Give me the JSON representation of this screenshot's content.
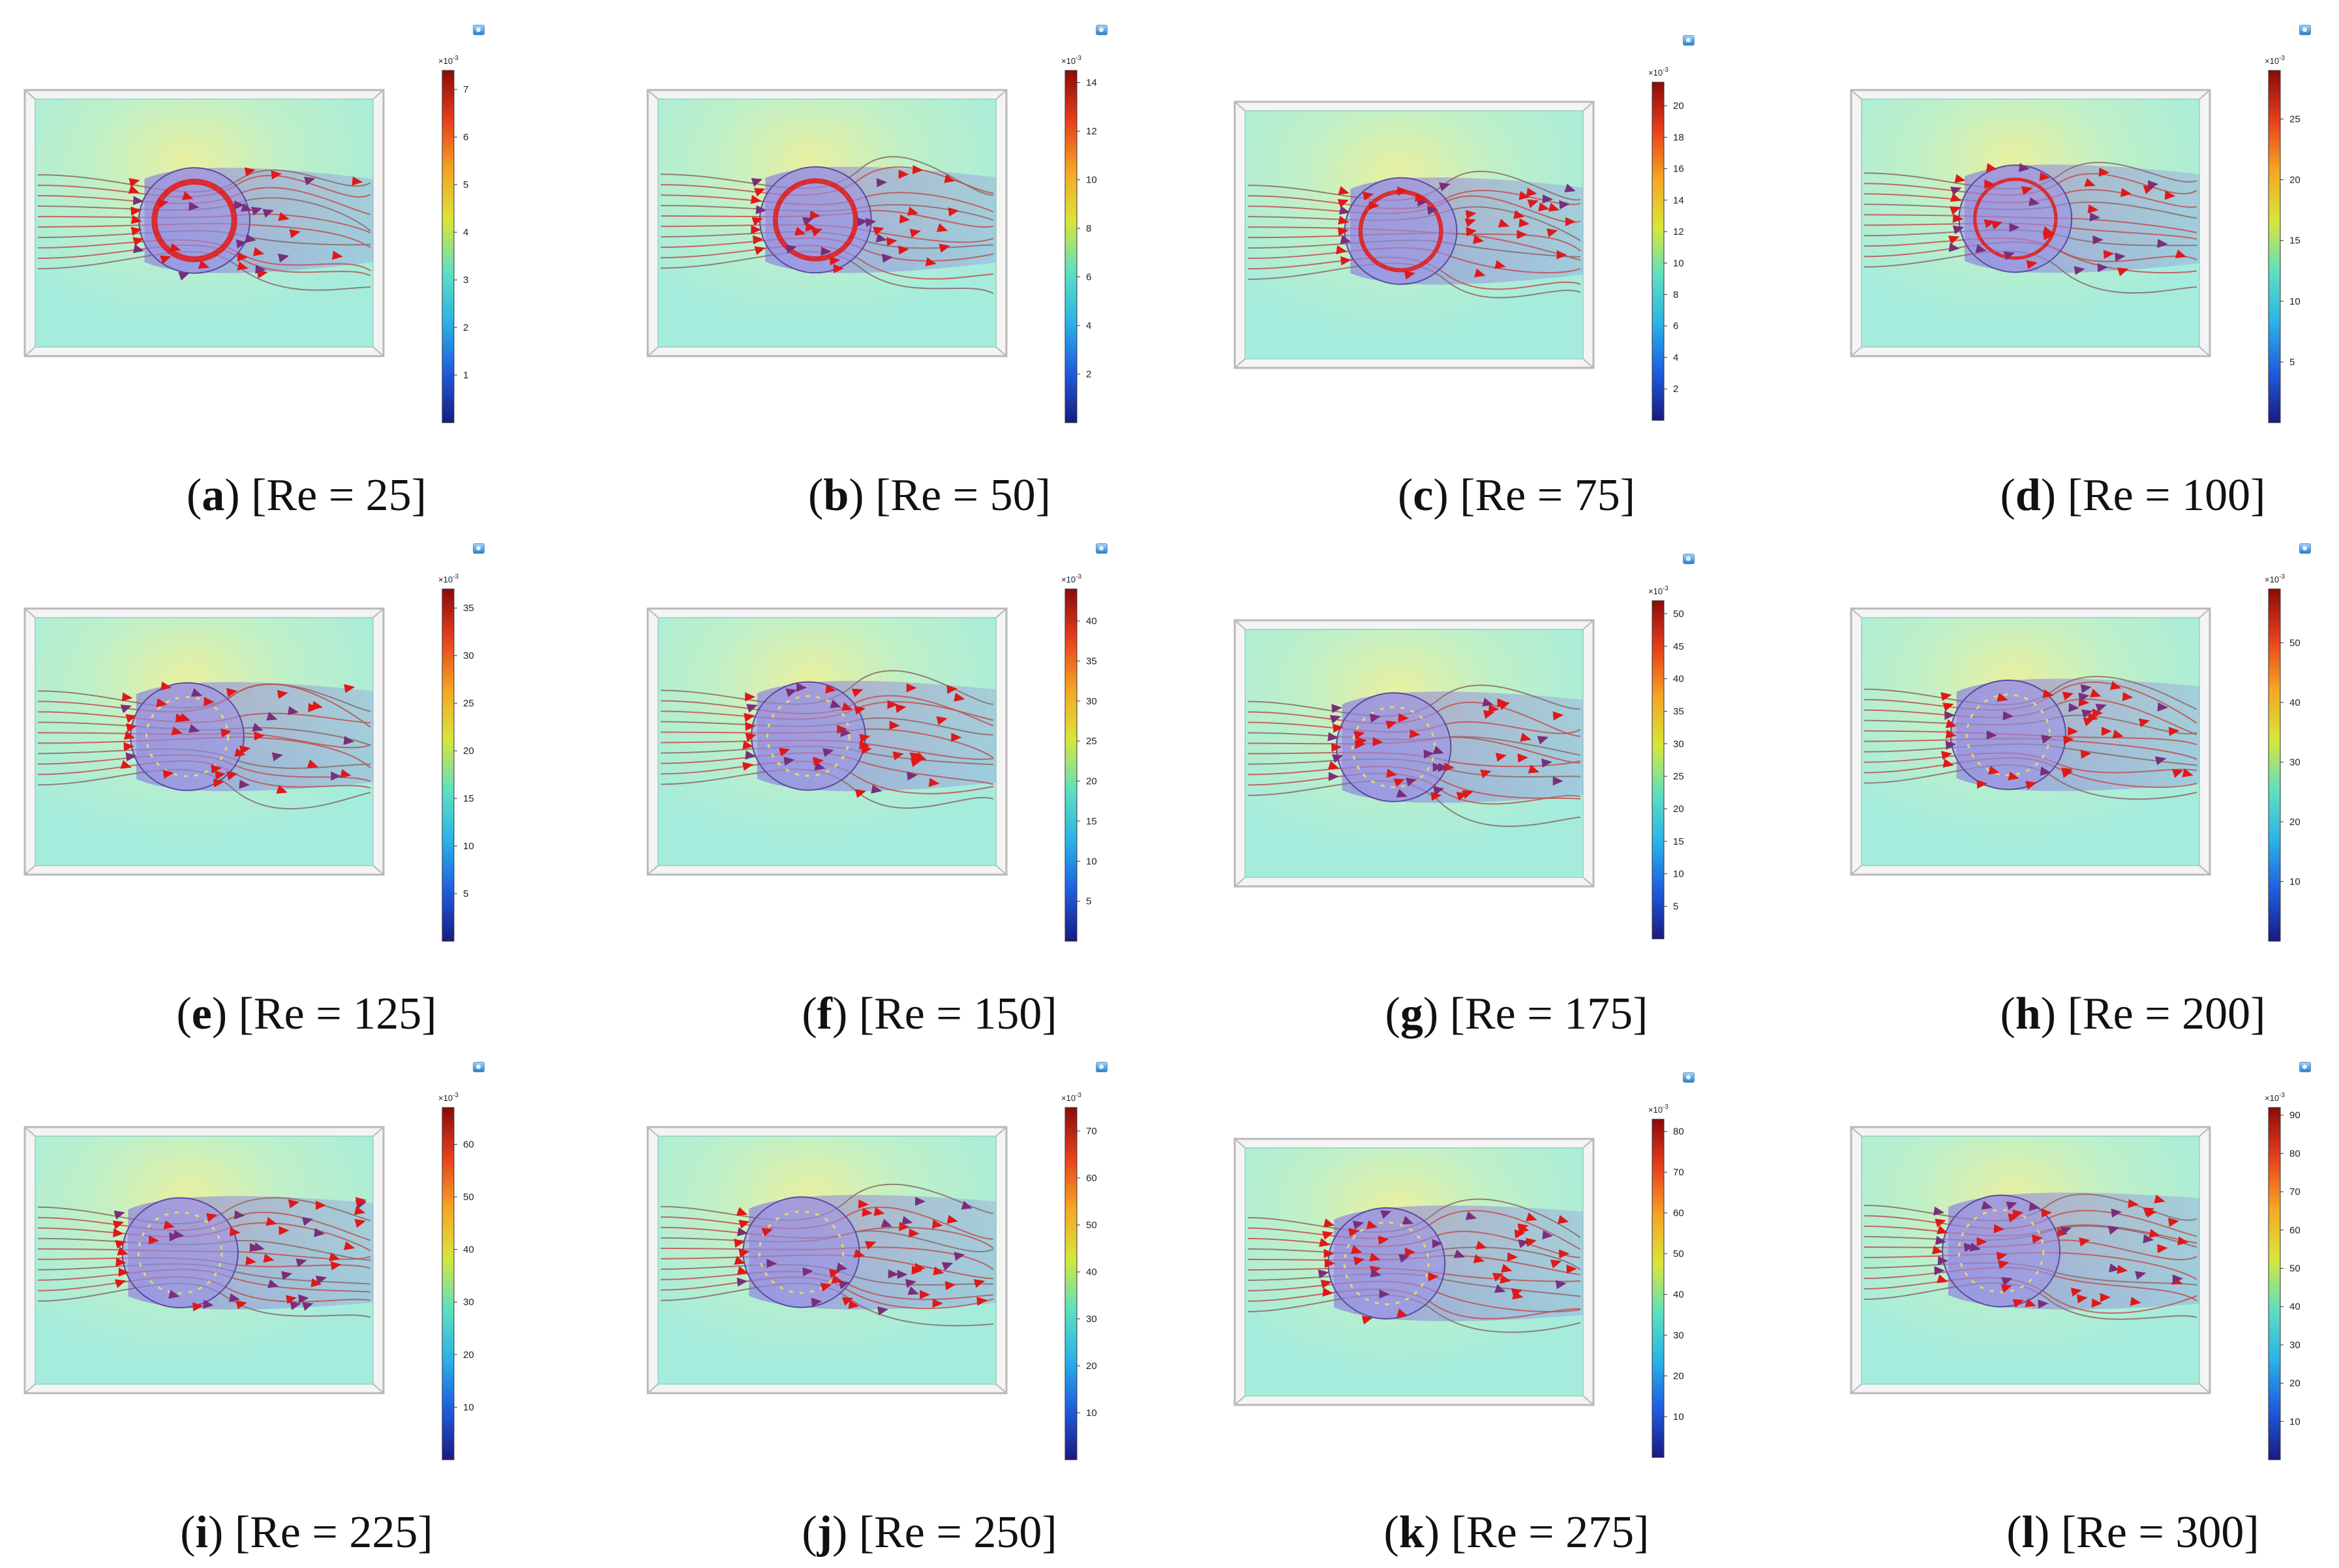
{
  "figure_type": "streamline flow simulation grid",
  "colorbar": {
    "multiplier_base": "×10",
    "multiplier_exp": "-3",
    "colors": [
      "#1a1a80",
      "#1f5ce0",
      "#2ab3e6",
      "#5ee0c0",
      "#d8e63a",
      "#f5a623",
      "#e8401c",
      "#8b0a0a"
    ]
  },
  "colors": {
    "field_background": "#a6ecdc",
    "wake": "#8a7fe0",
    "streamline": "#c05050",
    "arrow": "#e01818",
    "arrow_dark": "#7a2e7a",
    "frame": "#b9b9b9"
  },
  "panels": [
    {
      "letter": "a",
      "re_label": "[Re = 25]",
      "re": 25,
      "cbar_max": 7.4,
      "ticks": [
        "1",
        "2",
        "3",
        "4",
        "5",
        "6",
        "7"
      ]
    },
    {
      "letter": "b",
      "re_label": "[Re = 50]",
      "re": 50,
      "cbar_max": 14.5,
      "ticks": [
        "2",
        "4",
        "6",
        "8",
        "10",
        "12",
        "14"
      ]
    },
    {
      "letter": "c",
      "re_label": "[Re = 75]",
      "re": 75,
      "cbar_max": 21.5,
      "ticks": [
        "2",
        "4",
        "6",
        "8",
        "10",
        "12",
        "14",
        "16",
        "18",
        "20"
      ]
    },
    {
      "letter": "d",
      "re_label": "[Re = 100]",
      "re": 100,
      "cbar_max": 29,
      "ticks": [
        "5",
        "10",
        "15",
        "20",
        "25"
      ]
    },
    {
      "letter": "e",
      "re_label": "[Re = 125]",
      "re": 125,
      "cbar_max": 37,
      "ticks": [
        "5",
        "10",
        "15",
        "20",
        "25",
        "30",
        "35"
      ]
    },
    {
      "letter": "f",
      "re_label": "[Re = 150]",
      "re": 150,
      "cbar_max": 44,
      "ticks": [
        "5",
        "10",
        "15",
        "20",
        "25",
        "30",
        "35",
        "40"
      ]
    },
    {
      "letter": "g",
      "re_label": "[Re = 175]",
      "re": 175,
      "cbar_max": 52,
      "ticks": [
        "5",
        "10",
        "15",
        "20",
        "25",
        "30",
        "35",
        "40",
        "45",
        "50"
      ]
    },
    {
      "letter": "h",
      "re_label": "[Re = 200]",
      "re": 200,
      "cbar_max": 59,
      "ticks": [
        "10",
        "20",
        "30",
        "40",
        "50"
      ]
    },
    {
      "letter": "i",
      "re_label": "[Re = 225]",
      "re": 225,
      "cbar_max": 67,
      "ticks": [
        "10",
        "20",
        "30",
        "40",
        "50",
        "60"
      ]
    },
    {
      "letter": "j",
      "re_label": "[Re = 250]",
      "re": 250,
      "cbar_max": 75,
      "ticks": [
        "10",
        "20",
        "30",
        "40",
        "50",
        "60",
        "70"
      ]
    },
    {
      "letter": "k",
      "re_label": "[Re = 275]",
      "re": 275,
      "cbar_max": 83,
      "ticks": [
        "10",
        "20",
        "30",
        "40",
        "50",
        "60",
        "70",
        "80"
      ]
    },
    {
      "letter": "l",
      "re_label": "[Re = 300]",
      "re": 300,
      "cbar_max": 92,
      "ticks": [
        "10",
        "20",
        "30",
        "40",
        "50",
        "60",
        "70",
        "80",
        "90"
      ]
    }
  ]
}
